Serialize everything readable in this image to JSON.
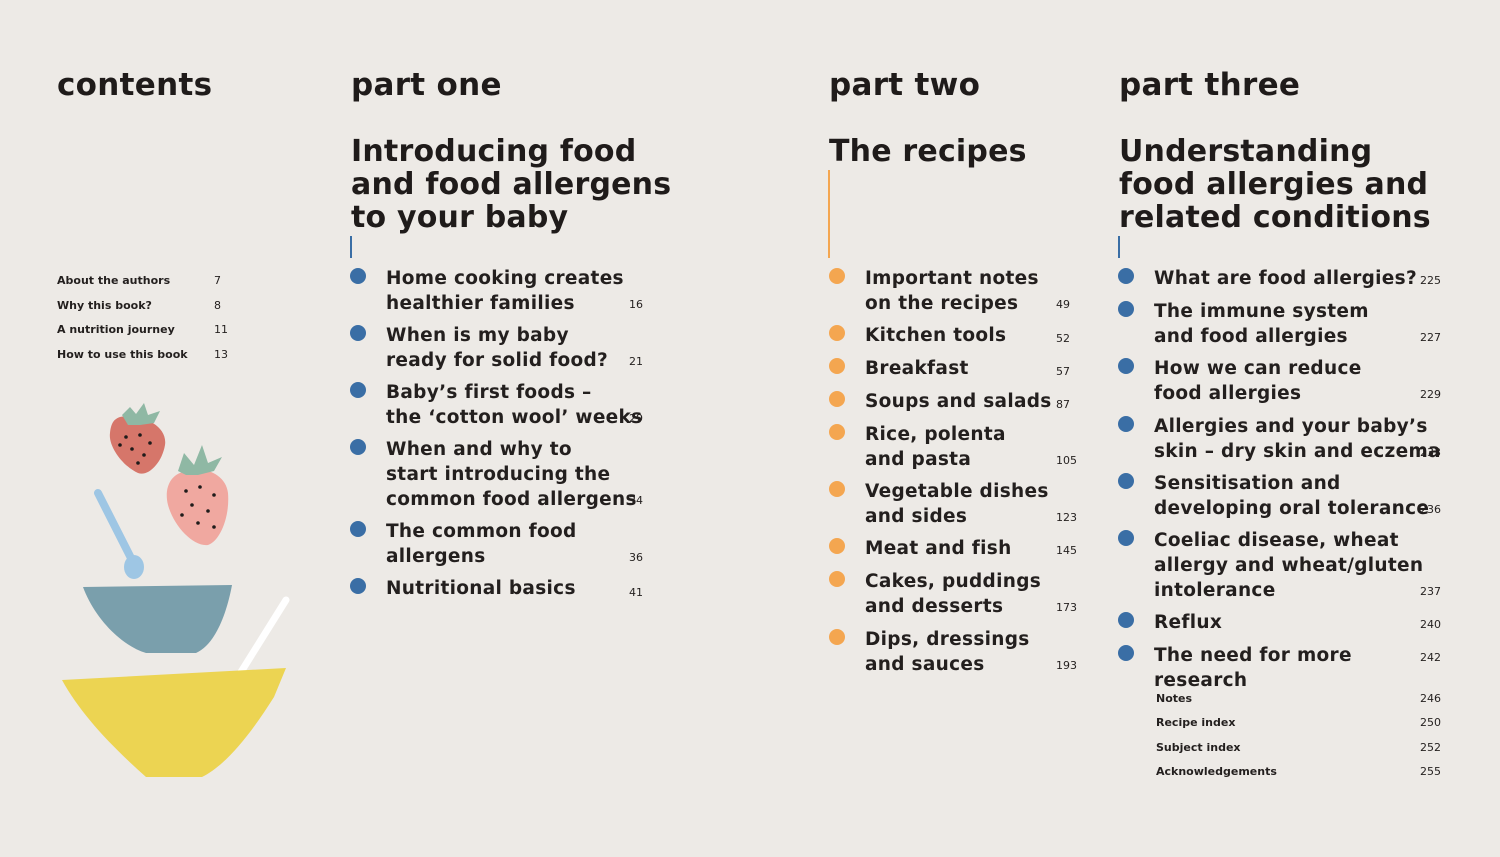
{
  "colors": {
    "background": "#edeae6",
    "blue_dot": "#3a6ea5",
    "orange_dot": "#f4a650",
    "rule_blue": "#3a6ea5",
    "rule_orange": "#f4a650"
  },
  "contents": {
    "heading": "contents",
    "items": [
      {
        "label": "About the authors",
        "page": "7"
      },
      {
        "label": "Why this book?",
        "page": "8"
      },
      {
        "label": "A nutrition journey",
        "page": "11"
      },
      {
        "label": "How to use this book",
        "page": "13"
      }
    ]
  },
  "part_one": {
    "heading": "part one",
    "title": "Introducing food\nand food allergens\nto your baby",
    "items": [
      {
        "label": "Home cooking creates\nhealthier families",
        "page": "16"
      },
      {
        "label": "When is my baby\nready for solid food?",
        "page": "21"
      },
      {
        "label": "Baby’s first foods –\nthe ‘cotton wool’ weeks",
        "page": "29"
      },
      {
        "label": "When and why to\nstart introducing the\ncommon food allergens",
        "page": "34"
      },
      {
        "label": "The common food\nallergens",
        "page": "36"
      },
      {
        "label": "Nutritional basics",
        "page": "41"
      }
    ]
  },
  "part_two": {
    "heading": "part two",
    "title": "The recipes",
    "items": [
      {
        "label": "Important notes\non the recipes",
        "page": "49"
      },
      {
        "label": "Kitchen tools",
        "page": "52"
      },
      {
        "label": "Breakfast",
        "page": "57"
      },
      {
        "label": "Soups and salads",
        "page": "87"
      },
      {
        "label": "Rice, polenta\nand pasta",
        "page": "105"
      },
      {
        "label": "Vegetable dishes\nand sides",
        "page": "123"
      },
      {
        "label": "Meat and fish",
        "page": "145"
      },
      {
        "label": "Cakes, puddings\nand desserts",
        "page": "173"
      },
      {
        "label": "Dips, dressings\nand sauces",
        "page": "193"
      }
    ]
  },
  "part_three": {
    "heading": "part three",
    "title": "Understanding\nfood allergies and\nrelated conditions",
    "items": [
      {
        "label": "What are food allergies?",
        "page": "225"
      },
      {
        "label": "The immune system\nand food allergies",
        "page": "227"
      },
      {
        "label": "How we can reduce\nfood allergies",
        "page": "229"
      },
      {
        "label": "Allergies and your baby’s\nskin – dry skin and eczema",
        "page": "233"
      },
      {
        "label": "Sensitisation and\ndeveloping oral tolerance",
        "page": "236"
      },
      {
        "label": "Coeliac disease, wheat\nallergy and wheat/gluten\nintolerance",
        "page": "237"
      },
      {
        "label": "Reflux",
        "page": "240"
      },
      {
        "label": "The need for more research",
        "page": "242"
      }
    ],
    "end_items": [
      {
        "label": "Notes",
        "page": "246"
      },
      {
        "label": "Recipe index",
        "page": "250"
      },
      {
        "label": "Subject index",
        "page": "252"
      },
      {
        "label": "Acknowledgements",
        "page": "255"
      }
    ]
  },
  "illustration": {
    "icons": [
      "strawberry-icon",
      "spoon-icon",
      "bowl-icon"
    ]
  }
}
